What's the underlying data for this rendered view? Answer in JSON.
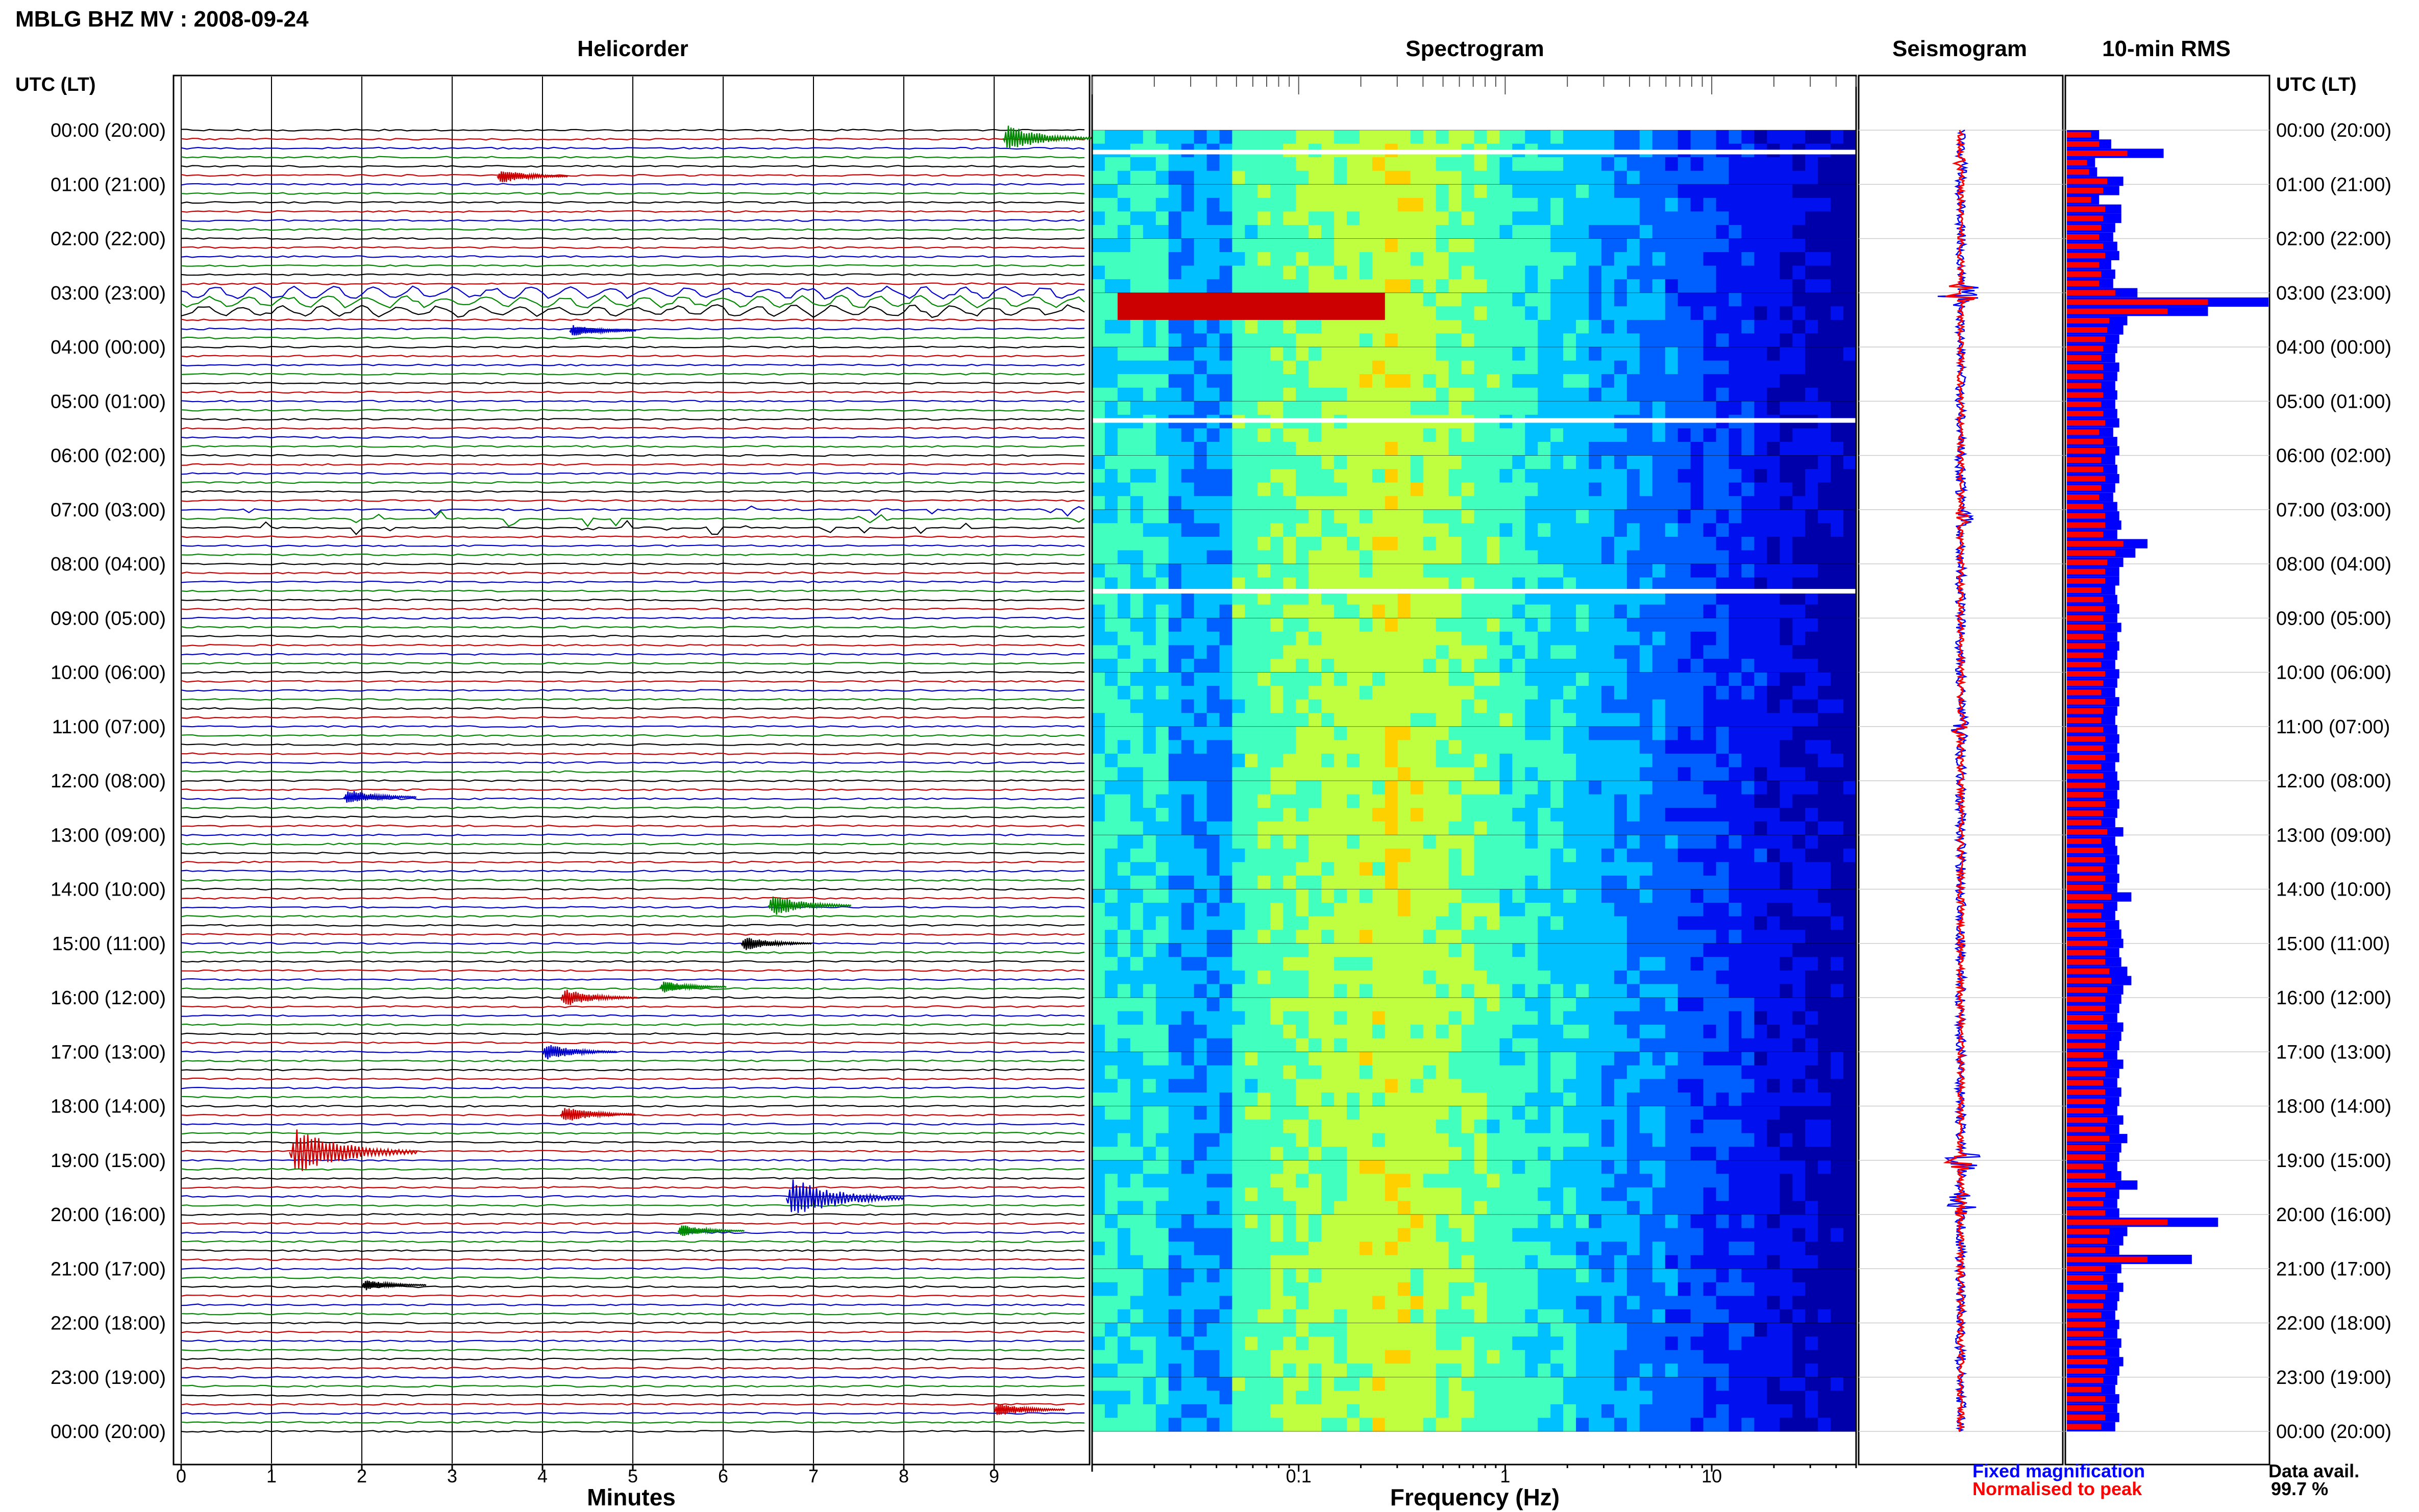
{
  "title": "MBLG BHZ MV : 2008-09-24",
  "panels": {
    "helicorder": "Helicorder",
    "spectrogram": "Spectrogram",
    "seismogram": "Seismogram",
    "rms": "10-min RMS"
  },
  "time_axis_label": "UTC (LT)",
  "time_labels": [
    "00:00 (20:00)",
    "01:00 (21:00)",
    "02:00 (22:00)",
    "03:00 (23:00)",
    "04:00 (00:00)",
    "05:00 (01:00)",
    "06:00 (02:00)",
    "07:00 (03:00)",
    "08:00 (04:00)",
    "09:00 (05:00)",
    "10:00 (06:00)",
    "11:00 (07:00)",
    "12:00 (08:00)",
    "13:00 (09:00)",
    "14:00 (10:00)",
    "15:00 (11:00)",
    "16:00 (12:00)",
    "17:00 (13:00)",
    "18:00 (14:00)",
    "19:00 (15:00)",
    "20:00 (16:00)",
    "21:00 (17:00)",
    "22:00 (18:00)",
    "23:00 (19:00)",
    "00:00 (20:00)"
  ],
  "legend": {
    "fixed": "Fixed magnification",
    "normalised": "Normalised to peak",
    "avail_label": "Data avail.",
    "avail_value": "99.7 %"
  },
  "colors": {
    "trace_cycle": [
      "#000000",
      "#cc0000",
      "#0000cc",
      "#008800"
    ],
    "rms_fixed": "#0000ff",
    "rms_normalised": "#ff0000",
    "gridline": "#000000"
  },
  "chart_data": [
    {
      "type": "line",
      "panel": "helicorder",
      "xlabel": "Minutes",
      "xticks": [
        "0",
        "1",
        "2",
        "3",
        "4",
        "5",
        "6",
        "7",
        "8",
        "9"
      ],
      "xlim": [
        0,
        10
      ],
      "rows_per_hour": 6,
      "hours": 24,
      "events": [
        {
          "hour": 0.15,
          "minute": 9.1,
          "amp": 2.2,
          "color": "#008800"
        },
        {
          "hour": 0.85,
          "minute": 3.5,
          "amp": 1.2,
          "color": "#cc0000"
        },
        {
          "hour": 3.7,
          "minute": 4.3,
          "amp": 1.0,
          "color": "#0000cc"
        },
        {
          "hour": 12.3,
          "minute": 1.8,
          "amp": 1.3,
          "color": "#0000cc"
        },
        {
          "hour": 14.3,
          "minute": 6.5,
          "amp": 1.8,
          "color": "#008800"
        },
        {
          "hour": 15.0,
          "minute": 6.2,
          "amp": 1.2,
          "color": "#000000"
        },
        {
          "hour": 15.8,
          "minute": 5.3,
          "amp": 1.0,
          "color": "#008800"
        },
        {
          "hour": 16.0,
          "minute": 4.2,
          "amp": 1.5,
          "color": "#cc0000"
        },
        {
          "hour": 17.0,
          "minute": 4.0,
          "amp": 1.4,
          "color": "#0000cc"
        },
        {
          "hour": 18.15,
          "minute": 4.2,
          "amp": 1.4,
          "color": "#cc0000"
        },
        {
          "hour": 18.85,
          "minute": 1.2,
          "amp": 4.0,
          "color": "#cc0000"
        },
        {
          "hour": 19.7,
          "minute": 6.7,
          "amp": 3.5,
          "color": "#0000cc"
        },
        {
          "hour": 20.3,
          "minute": 5.5,
          "amp": 1.0,
          "color": "#008800"
        },
        {
          "hour": 21.3,
          "minute": 2.0,
          "amp": 0.9,
          "color": "#000000"
        },
        {
          "hour": 23.6,
          "minute": 9.0,
          "amp": 1.2,
          "color": "#cc0000"
        }
      ]
    },
    {
      "type": "heatmap",
      "panel": "spectrogram",
      "xlabel": "Frequency (Hz)",
      "x_scale": "log",
      "xlim": [
        0.01,
        50
      ],
      "xticks": [
        0.1,
        1,
        10
      ],
      "xtick_labels": [
        "0.1",
        "1",
        "10"
      ],
      "colormap": [
        "#0000aa",
        "#0010ee",
        "#0060ff",
        "#00c0ff",
        "#40ffbf",
        "#c0ff40",
        "#ffd000",
        "#ff5000",
        "#cc0000"
      ],
      "gap_hours": [
        0.4,
        5.35,
        8.5
      ],
      "energy_peak_hz": 0.3
    },
    {
      "type": "line",
      "panel": "seismogram",
      "series": [
        {
          "name": "Fixed magnification",
          "color": "#0000ff"
        },
        {
          "name": "Normalised to peak",
          "color": "#ff0000"
        }
      ]
    },
    {
      "type": "bar",
      "panel": "10-min RMS",
      "orientation": "horizontal",
      "series": [
        {
          "name": "Fixed magnification",
          "color": "#0000ff",
          "values": [
            1.6,
            2.2,
            4.8,
            1.4,
            1.5,
            2.8,
            2.6,
            1.6,
            2.7,
            2.7,
            2.4,
            2.3,
            2.5,
            2.6,
            2.2,
            2.4,
            2.3,
            3.5,
            10.0,
            7.0,
            3.0,
            2.8,
            2.6,
            2.5,
            2.4,
            2.6,
            2.5,
            2.4,
            2.5,
            2.4,
            2.5,
            2.6,
            2.3,
            2.5,
            2.6,
            2.4,
            2.5,
            2.6,
            2.4,
            2.3,
            2.5,
            2.6,
            2.7,
            2.5,
            4.0,
            3.4,
            2.8,
            2.6,
            2.6,
            2.4,
            2.5,
            2.6,
            2.5,
            2.7,
            2.5,
            2.6,
            2.5,
            2.4,
            2.6,
            2.5,
            2.4,
            2.6,
            2.5,
            2.4,
            2.5,
            2.6,
            2.5,
            2.6,
            2.4,
            2.5,
            2.6,
            2.5,
            2.6,
            2.5,
            2.4,
            2.8,
            2.4,
            2.5,
            2.6,
            2.5,
            2.6,
            2.5,
            3.2,
            2.5,
            2.4,
            2.6,
            2.7,
            2.8,
            2.6,
            2.7,
            3.0,
            3.2,
            2.8,
            2.7,
            2.6,
            2.5,
            2.8,
            2.7,
            2.6,
            2.5,
            2.8,
            2.6,
            2.5,
            2.7,
            2.6,
            2.5,
            2.8,
            2.6,
            3.0,
            2.7,
            2.6,
            2.5,
            2.7,
            3.5,
            2.6,
            2.5,
            2.6,
            7.5,
            3.0,
            2.8,
            2.6,
            6.2,
            2.7,
            2.5,
            2.8,
            2.6,
            2.5,
            2.4,
            2.6,
            2.5,
            2.7,
            2.6,
            2.8,
            2.6,
            2.5,
            2.4,
            2.6,
            2.5,
            2.6,
            2.4
          ]
        },
        {
          "name": "Normalised to peak",
          "color": "#ff0000",
          "values": [
            1.2,
            1.6,
            3.0,
            1.0,
            1.1,
            2.0,
            1.8,
            1.2,
            1.9,
            1.8,
            1.7,
            1.6,
            1.8,
            1.9,
            1.6,
            1.7,
            1.6,
            2.4,
            7.0,
            5.0,
            2.1,
            2.0,
            1.9,
            1.8,
            1.7,
            1.8,
            1.8,
            1.7,
            1.8,
            1.7,
            1.8,
            1.9,
            1.6,
            1.8,
            1.9,
            1.7,
            1.8,
            1.9,
            1.7,
            1.6,
            1.8,
            1.9,
            1.9,
            1.8,
            2.8,
            2.4,
            2.0,
            1.9,
            1.9,
            1.7,
            1.8,
            1.9,
            1.8,
            1.9,
            1.8,
            1.9,
            1.8,
            1.7,
            1.9,
            1.8,
            1.7,
            1.9,
            1.8,
            1.7,
            1.8,
            1.9,
            1.8,
            1.9,
            1.7,
            1.8,
            1.9,
            1.8,
            1.9,
            1.8,
            1.7,
            2.0,
            1.7,
            1.8,
            1.9,
            1.8,
            1.9,
            1.8,
            2.2,
            1.8,
            1.7,
            1.9,
            1.9,
            2.0,
            1.9,
            1.9,
            2.1,
            2.2,
            2.0,
            1.9,
            1.9,
            1.8,
            2.0,
            1.9,
            1.9,
            1.8,
            2.0,
            1.9,
            1.8,
            1.9,
            1.9,
            1.8,
            2.0,
            1.9,
            2.1,
            1.9,
            1.9,
            1.8,
            1.9,
            2.4,
            1.9,
            1.8,
            1.9,
            5.0,
            2.1,
            2.0,
            1.9,
            4.0,
            1.9,
            1.8,
            2.0,
            1.9,
            1.8,
            1.7,
            1.9,
            1.8,
            1.9,
            1.9,
            2.0,
            1.9,
            1.8,
            1.7,
            1.9,
            1.8,
            1.9,
            1.7
          ]
        }
      ]
    }
  ]
}
